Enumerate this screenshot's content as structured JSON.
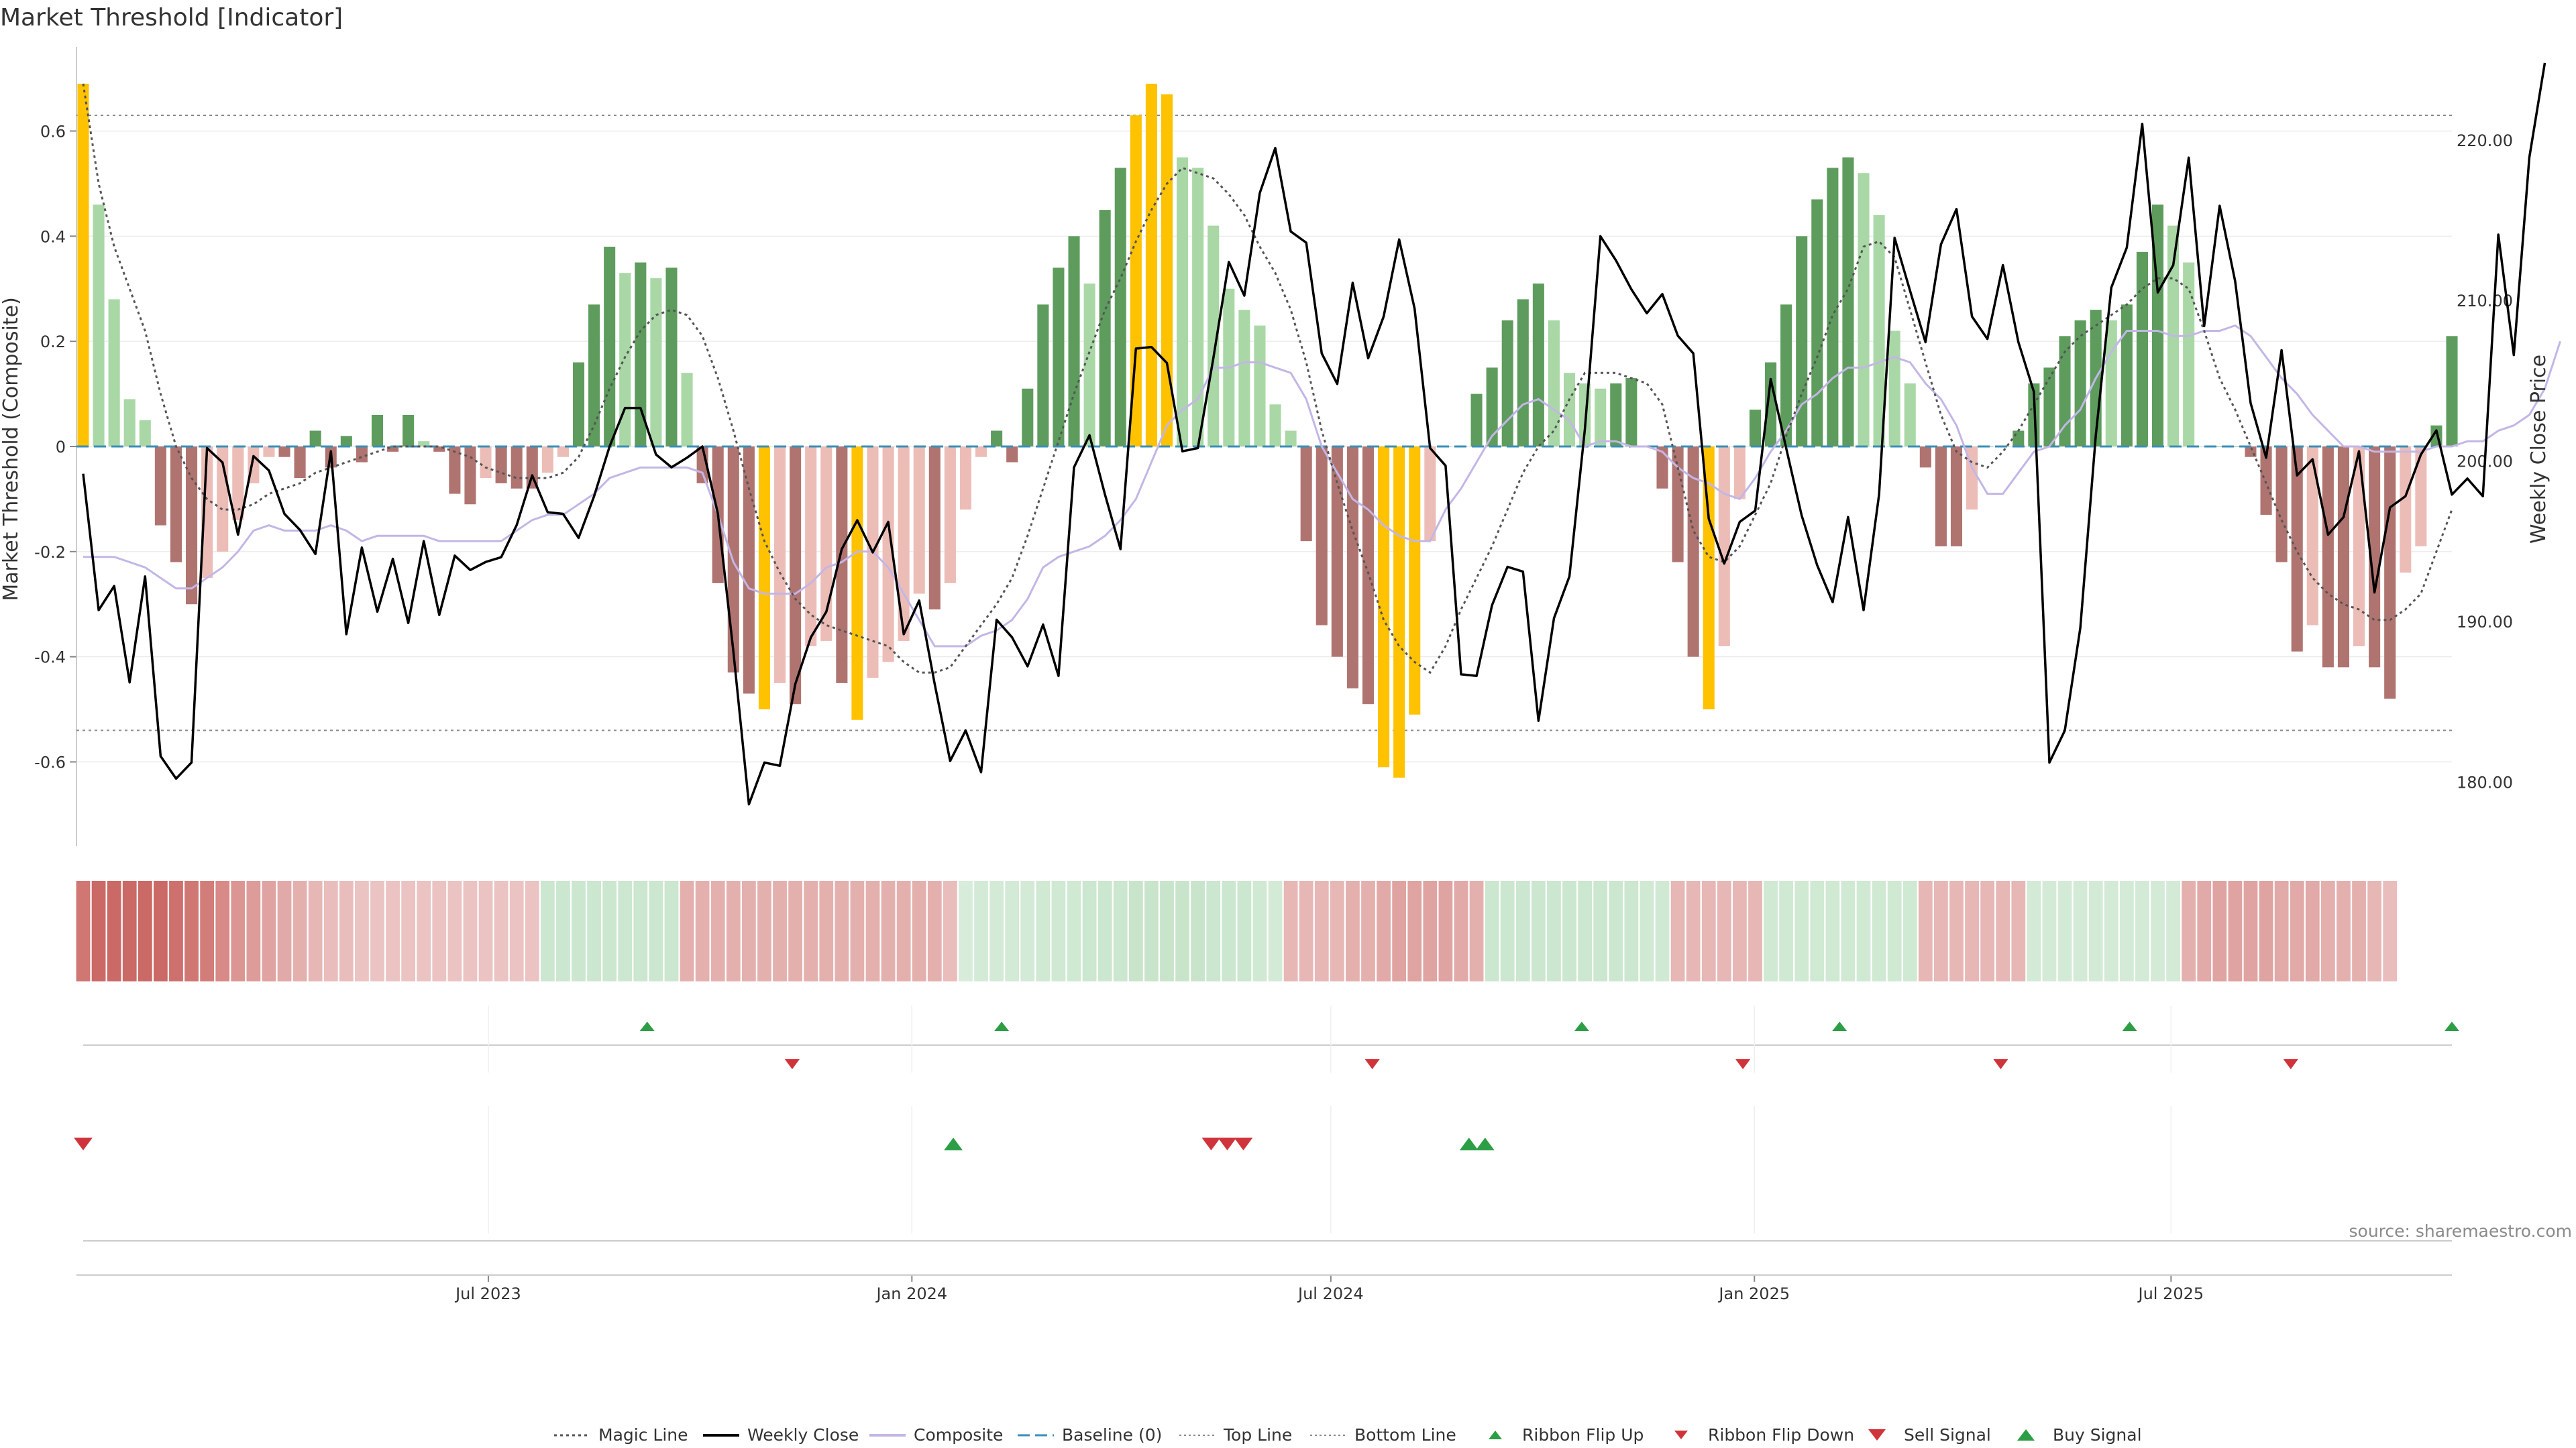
{
  "title": "Market Threshold [Indicator]",
  "source": "source: sharemaestro.com",
  "colors": {
    "strong_green": "#5e9c5e",
    "light_green": "#a9d8a6",
    "strong_red": "#b07470",
    "light_red": "#ecbdb7",
    "extreme": "#ffc200",
    "composite": "#c3b6e6",
    "close": "#000000",
    "magic": "#555555",
    "baseline": "#3a8fb7",
    "buy": "#2e9e46",
    "sell": "#d0343b"
  },
  "chart_data": {
    "type": "bar",
    "title": "Market Threshold [Indicator]",
    "ylabel": "Market Threshold (Composite)",
    "y2label": "Weekly Close Price",
    "ylim": [
      -0.76,
      0.76
    ],
    "y2lim": [
      176.0,
      225.8
    ],
    "yticks": [
      "0.6",
      "0.4",
      "0.2",
      "0",
      "-0.2",
      "-0.4",
      "-0.6"
    ],
    "y2ticks": [
      "220.00",
      "210.00",
      "200.00",
      "190.00",
      "180.00"
    ],
    "x_start": "2023-01-06",
    "x_end": "2025-10-31",
    "xticks": [
      "Jul 2023",
      "Jan 2024",
      "Jul 2024",
      "Jan 2025",
      "Jul 2025"
    ],
    "top_line": 0.63,
    "bottom_line": -0.54,
    "composite_bars": [
      0.69,
      0.46,
      0.28,
      0.09,
      0.05,
      -0.15,
      -0.22,
      -0.3,
      -0.25,
      -0.2,
      -0.14,
      -0.07,
      -0.02,
      -0.02,
      -0.06,
      0.03,
      -0.04,
      0.02,
      -0.03,
      0.06,
      -0.01,
      0.06,
      0.01,
      -0.01,
      -0.09,
      -0.11,
      -0.06,
      -0.07,
      -0.08,
      -0.08,
      -0.05,
      -0.02,
      0.16,
      0.27,
      0.38,
      0.33,
      0.35,
      0.32,
      0.34,
      0.14,
      -0.07,
      -0.26,
      -0.43,
      -0.47,
      -0.5,
      -0.45,
      -0.49,
      -0.38,
      -0.37,
      -0.45,
      -0.52,
      -0.44,
      -0.41,
      -0.37,
      -0.28,
      -0.31,
      -0.26,
      -0.12,
      -0.02,
      0.03,
      -0.03,
      0.11,
      0.27,
      0.34,
      0.4,
      0.31,
      0.45,
      0.53,
      0.63,
      0.69,
      0.67,
      0.55,
      0.53,
      0.42,
      0.3,
      0.26,
      0.23,
      0.08,
      0.03,
      -0.18,
      -0.34,
      -0.4,
      -0.46,
      -0.49,
      -0.61,
      -0.63,
      -0.51,
      -0.18,
      0.0,
      0.0,
      0.1,
      0.15,
      0.24,
      0.28,
      0.31,
      0.24,
      0.14,
      0.12,
      0.11,
      0.12,
      0.13,
      0.0,
      -0.08,
      -0.22,
      -0.4,
      -0.5,
      -0.38,
      -0.1,
      0.07,
      0.16,
      0.27,
      0.4,
      0.47,
      0.53,
      0.55,
      0.52,
      0.44,
      0.22,
      0.12,
      -0.04,
      -0.19,
      -0.19,
      -0.12,
      0.0,
      0.0,
      0.03,
      0.12,
      0.15,
      0.21,
      0.24,
      0.26,
      0.24,
      0.27,
      0.37,
      0.46,
      0.42,
      0.35,
      0.0,
      0.0,
      0.0,
      -0.02,
      -0.13,
      -0.22,
      -0.39,
      -0.34,
      -0.42,
      -0.42,
      -0.38,
      -0.42,
      -0.48,
      -0.24,
      -0.19,
      0.04,
      0.21
    ],
    "weekly_close": [
      199.2,
      190.7,
      192.2,
      186.2,
      192.8,
      181.6,
      180.2,
      181.2,
      200.8,
      199.9,
      195.4,
      200.3,
      199.4,
      196.7,
      195.7,
      194.2,
      200.6,
      189.2,
      194.6,
      190.6,
      193.9,
      189.9,
      195.0,
      190.4,
      194.1,
      193.2,
      193.7,
      194.0,
      196.0,
      199.1,
      196.8,
      196.7,
      195.2,
      197.8,
      200.9,
      203.3,
      203.3,
      200.4,
      199.6,
      200.2,
      200.9,
      196.7,
      188.1,
      178.6,
      181.2,
      181.0,
      186.1,
      189.0,
      190.6,
      194.5,
      196.3,
      194.3,
      196.2,
      189.2,
      191.3,
      186.1,
      181.3,
      183.2,
      180.6,
      190.1,
      189.0,
      187.2,
      189.8,
      186.6,
      199.6,
      201.6,
      197.9,
      194.5,
      207.0,
      207.1,
      206.1,
      200.6,
      200.8,
      206.4,
      212.4,
      210.3,
      216.7,
      219.5,
      214.3,
      213.6,
      206.7,
      204.8,
      211.1,
      206.4,
      209.0,
      213.8,
      209.5,
      200.8,
      199.7,
      186.7,
      186.6,
      191.0,
      193.4,
      193.1,
      183.8,
      190.2,
      192.8,
      202.0,
      214.0,
      212.5,
      210.7,
      209.2,
      210.4,
      207.8,
      206.7,
      196.4,
      193.6,
      196.2,
      196.9,
      205.1,
      200.8,
      196.6,
      193.5,
      191.2,
      196.5,
      190.7,
      197.9,
      213.9,
      210.6,
      207.4,
      213.5,
      215.7,
      209.0,
      207.6,
      212.2,
      207.4,
      204.3,
      181.2,
      183.2,
      189.6,
      201.6,
      210.8,
      213.3,
      221.0,
      210.5,
      212.2,
      218.9,
      208.4,
      215.9,
      211.2,
      203.6,
      200.2,
      206.9,
      199.1,
      200.1,
      195.4,
      196.5,
      200.6,
      191.8,
      197.1,
      197.8,
      200.4,
      201.9,
      197.9,
      198.9,
      197.8,
      214.1,
      206.6,
      218.9,
      224.8
    ],
    "composite_line": [
      -0.21,
      -0.21,
      -0.21,
      -0.22,
      -0.23,
      -0.25,
      -0.27,
      -0.27,
      -0.25,
      -0.23,
      -0.2,
      -0.16,
      -0.15,
      -0.16,
      -0.16,
      -0.16,
      -0.15,
      -0.16,
      -0.18,
      -0.17,
      -0.17,
      -0.17,
      -0.17,
      -0.18,
      -0.18,
      -0.18,
      -0.18,
      -0.18,
      -0.16,
      -0.14,
      -0.13,
      -0.13,
      -0.11,
      -0.09,
      -0.06,
      -0.05,
      -0.04,
      -0.04,
      -0.04,
      -0.04,
      -0.05,
      -0.13,
      -0.22,
      -0.27,
      -0.28,
      -0.28,
      -0.28,
      -0.26,
      -0.23,
      -0.22,
      -0.2,
      -0.2,
      -0.23,
      -0.28,
      -0.33,
      -0.38,
      -0.38,
      -0.38,
      -0.36,
      -0.35,
      -0.33,
      -0.29,
      -0.23,
      -0.21,
      -0.2,
      -0.19,
      -0.17,
      -0.14,
      -0.1,
      -0.03,
      0.04,
      0.07,
      0.09,
      0.15,
      0.15,
      0.16,
      0.16,
      0.15,
      0.14,
      0.09,
      0.0,
      -0.05,
      -0.1,
      -0.12,
      -0.15,
      -0.17,
      -0.18,
      -0.18,
      -0.12,
      -0.08,
      -0.03,
      0.02,
      0.05,
      0.08,
      0.09,
      0.07,
      0.05,
      0.0,
      0.01,
      0.01,
      0.0,
      0.0,
      -0.01,
      -0.04,
      -0.06,
      -0.07,
      -0.09,
      -0.1,
      -0.06,
      -0.01,
      0.03,
      0.08,
      0.1,
      0.13,
      0.15,
      0.15,
      0.16,
      0.17,
      0.16,
      0.12,
      0.09,
      0.04,
      -0.04,
      -0.09,
      -0.09,
      -0.05,
      -0.01,
      0.0,
      0.04,
      0.07,
      0.13,
      0.18,
      0.22,
      0.22,
      0.22,
      0.21,
      0.21,
      0.22,
      0.22,
      0.23,
      0.21,
      0.17,
      0.13,
      0.1,
      0.06,
      0.03,
      0.0,
      0.0,
      -0.01,
      -0.01,
      -0.01,
      -0.01,
      0.0,
      0.0,
      0.01,
      0.01,
      0.03,
      0.04,
      0.06,
      0.11,
      0.2
    ],
    "magic_line": [
      0.69,
      0.5,
      0.38,
      0.3,
      0.22,
      0.1,
      0.0,
      -0.06,
      -0.1,
      -0.12,
      -0.12,
      -0.11,
      -0.09,
      -0.08,
      -0.07,
      -0.05,
      -0.04,
      -0.03,
      -0.02,
      -0.01,
      0.0,
      0.0,
      0.0,
      0.0,
      -0.01,
      -0.02,
      -0.04,
      -0.05,
      -0.06,
      -0.06,
      -0.06,
      -0.05,
      -0.02,
      0.04,
      0.11,
      0.17,
      0.22,
      0.25,
      0.26,
      0.25,
      0.21,
      0.13,
      0.03,
      -0.08,
      -0.18,
      -0.24,
      -0.29,
      -0.32,
      -0.34,
      -0.35,
      -0.36,
      -0.37,
      -0.38,
      -0.41,
      -0.43,
      -0.43,
      -0.42,
      -0.38,
      -0.34,
      -0.3,
      -0.25,
      -0.17,
      -0.08,
      0.01,
      0.1,
      0.18,
      0.26,
      0.32,
      0.39,
      0.45,
      0.5,
      0.53,
      0.52,
      0.51,
      0.48,
      0.44,
      0.38,
      0.33,
      0.26,
      0.16,
      0.03,
      -0.07,
      -0.16,
      -0.24,
      -0.33,
      -0.38,
      -0.41,
      -0.43,
      -0.38,
      -0.31,
      -0.25,
      -0.19,
      -0.12,
      -0.05,
      0.0,
      0.03,
      0.09,
      0.14,
      0.14,
      0.14,
      0.13,
      0.12,
      0.08,
      -0.04,
      -0.16,
      -0.21,
      -0.22,
      -0.19,
      -0.13,
      -0.07,
      0.02,
      0.1,
      0.17,
      0.25,
      0.3,
      0.38,
      0.39,
      0.36,
      0.26,
      0.16,
      0.06,
      -0.01,
      -0.03,
      -0.04,
      -0.01,
      0.03,
      0.08,
      0.13,
      0.18,
      0.21,
      0.23,
      0.25,
      0.27,
      0.3,
      0.32,
      0.32,
      0.3,
      0.22,
      0.13,
      0.07,
      0.0,
      -0.07,
      -0.14,
      -0.2,
      -0.25,
      -0.28,
      -0.3,
      -0.31,
      -0.33,
      -0.33,
      -0.31,
      -0.28,
      -0.2,
      -0.12
    ],
    "ribbon": [
      -0.8,
      -0.9,
      -0.9,
      -0.9,
      -0.9,
      -0.9,
      -0.85,
      -0.8,
      -0.75,
      -0.65,
      -0.55,
      -0.5,
      -0.45,
      -0.4,
      -0.35,
      -0.3,
      -0.25,
      -0.25,
      -0.2,
      -0.2,
      -0.2,
      -0.2,
      -0.2,
      -0.2,
      -0.2,
      -0.2,
      -0.2,
      -0.2,
      -0.2,
      -0.2,
      0.4,
      0.4,
      0.4,
      0.4,
      0.4,
      0.4,
      0.4,
      0.4,
      0.4,
      -0.35,
      -0.35,
      -0.35,
      -0.35,
      -0.35,
      -0.35,
      -0.35,
      -0.35,
      -0.35,
      -0.35,
      -0.35,
      -0.35,
      -0.35,
      -0.35,
      -0.35,
      -0.35,
      -0.35,
      -0.25,
      0.25,
      0.3,
      0.3,
      0.3,
      0.3,
      0.35,
      0.35,
      0.35,
      0.4,
      0.4,
      0.4,
      0.45,
      0.45,
      0.45,
      0.45,
      0.45,
      0.4,
      0.4,
      0.4,
      0.35,
      0.3,
      -0.3,
      -0.3,
      -0.3,
      -0.3,
      -0.35,
      -0.35,
      -0.4,
      -0.45,
      -0.45,
      -0.45,
      -0.45,
      -0.4,
      -0.35,
      0.4,
      0.4,
      0.4,
      0.4,
      0.4,
      0.4,
      0.4,
      0.4,
      0.4,
      0.4,
      0.35,
      0.35,
      -0.3,
      -0.3,
      -0.3,
      -0.3,
      -0.3,
      -0.3,
      0.35,
      0.35,
      0.35,
      0.35,
      0.35,
      0.35,
      0.35,
      0.35,
      0.35,
      0.35,
      -0.3,
      -0.3,
      -0.3,
      -0.3,
      -0.3,
      -0.3,
      -0.3,
      0.3,
      0.3,
      0.3,
      0.3,
      0.3,
      0.3,
      0.3,
      0.3,
      0.3,
      0.3,
      -0.35,
      -0.4,
      -0.45,
      -0.45,
      -0.45,
      -0.45,
      -0.4,
      -0.4,
      -0.4,
      -0.35,
      -0.35,
      -0.35,
      -0.3,
      -0.25
    ],
    "ribbon_flip_up": [
      "2023-09-08",
      "2024-02-09",
      "2024-10-18",
      "2025-02-07",
      "2025-06-13",
      "2025-10-31"
    ],
    "ribbon_flip_down": [
      "2023-11-10",
      "2024-07-19",
      "2024-12-27",
      "2025-04-18",
      "2025-08-22"
    ],
    "sell_signal": [
      "2023-01-06",
      "2024-05-10",
      "2024-05-17",
      "2024-05-24"
    ],
    "buy_signal": [
      "2024-01-19",
      "2024-08-30",
      "2024-09-06"
    ],
    "legend": [
      {
        "label": "Magic Line",
        "kind": "dotted"
      },
      {
        "label": "Weekly Close",
        "kind": "solid"
      },
      {
        "label": "Composite",
        "kind": "composite"
      },
      {
        "label": "Baseline (0)",
        "kind": "dashed"
      },
      {
        "label": "Top Line",
        "kind": "thin-dotted"
      },
      {
        "label": "Bottom Line",
        "kind": "thin-dotted"
      },
      {
        "label": "Ribbon Flip Up",
        "kind": "tri-up-small"
      },
      {
        "label": "Ribbon Flip Down",
        "kind": "tri-down-small"
      },
      {
        "label": "Sell Signal",
        "kind": "tri-down"
      },
      {
        "label": "Buy Signal",
        "kind": "tri-up"
      }
    ]
  }
}
